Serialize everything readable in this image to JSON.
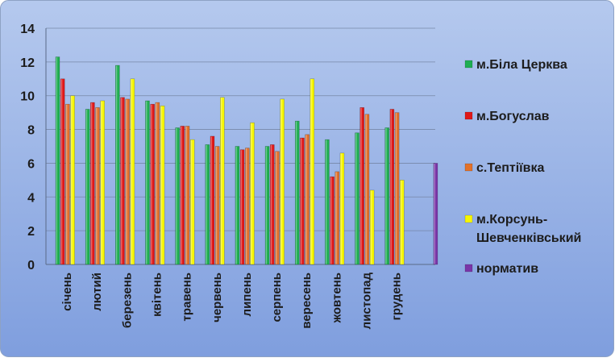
{
  "chart_data": {
    "type": "bar",
    "categories": [
      "січень",
      "лютий",
      "березень",
      "квітень",
      "травень",
      "червень",
      "липень",
      "серпень",
      "вересень",
      "жовтень",
      "листопад",
      "грудень",
      ""
    ],
    "series": [
      {
        "name": "м.Біла Церква",
        "color": "#1fae52",
        "values": [
          12.3,
          9.2,
          11.8,
          9.7,
          8.1,
          7.1,
          7.0,
          7.0,
          8.5,
          7.4,
          7.8,
          8.1,
          null
        ]
      },
      {
        "name": "м.Богуслав",
        "color": "#e01818",
        "values": [
          11.0,
          9.6,
          9.9,
          9.5,
          8.2,
          7.6,
          6.8,
          7.1,
          7.5,
          5.2,
          9.3,
          9.2,
          null
        ]
      },
      {
        "name": "с.Тептіївка",
        "color": "#e2712a",
        "values": [
          9.5,
          9.3,
          9.8,
          9.6,
          8.2,
          7.0,
          6.9,
          6.7,
          7.7,
          5.5,
          8.9,
          9.0,
          null
        ]
      },
      {
        "name": "м.Корсунь-Шевченківський",
        "color": "#f6f602",
        "values": [
          10.0,
          9.7,
          11.0,
          9.4,
          7.4,
          9.9,
          8.4,
          9.8,
          11.0,
          6.6,
          4.4,
          5.0,
          null
        ]
      },
      {
        "name": "норматив",
        "color": "#7a35a8",
        "values": [
          null,
          null,
          null,
          null,
          null,
          null,
          null,
          null,
          null,
          null,
          null,
          null,
          6.0
        ]
      }
    ],
    "y_ticks": [
      "0",
      "2",
      "4",
      "6",
      "8",
      "10",
      "12",
      "14"
    ],
    "ylim": [
      0,
      14
    ],
    "grid": true,
    "legend_position": "right",
    "legend_labels": [
      "м.Біла Церква",
      "м.Богуслав",
      "с.Тептіївка",
      "м.Корсунь-\nШевченківський",
      "норматив"
    ],
    "background_gradient": [
      "#b5c9ee",
      "#7f9ede"
    ]
  }
}
